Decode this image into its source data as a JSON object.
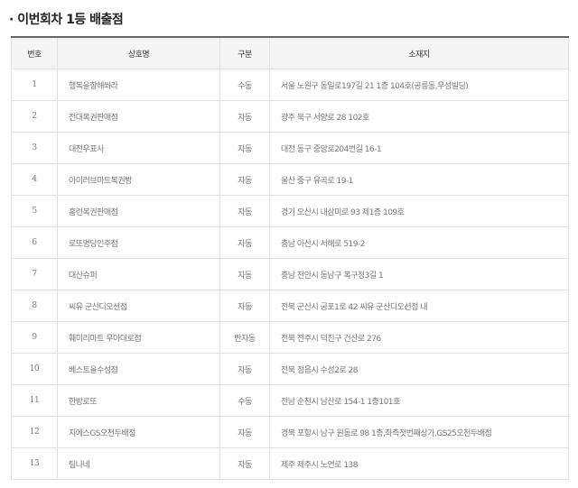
{
  "title": "· 이번회차 1등 배출점",
  "table": {
    "headers": [
      "번호",
      "상호명",
      "구분",
      "소재지"
    ],
    "rows": [
      {
        "no": "1",
        "name": "행복을향해쏴라",
        "type": "수동",
        "address": "서울 노원구 동일로197길 21 1층 104호(공릉동,우성빌딩)"
      },
      {
        "no": "2",
        "name": "전대복권판매점",
        "type": "자동",
        "address": "광주 북구 서양로 28 102호"
      },
      {
        "no": "3",
        "name": "대전우표사",
        "type": "자동",
        "address": "대전 동구 중앙로204번길 16-1"
      },
      {
        "no": "4",
        "name": "아이러브마트복권방",
        "type": "자동",
        "address": "울산 중구 유곡로 19-1"
      },
      {
        "no": "5",
        "name": "홈런복권판매점",
        "type": "자동",
        "address": "경기 오산시 내삼미로 93 제1층 109호"
      },
      {
        "no": "6",
        "name": "로또명당인주점",
        "type": "자동",
        "address": "충남 아산시 서해로 519-2"
      },
      {
        "no": "7",
        "name": "대산슈퍼",
        "type": "자동",
        "address": "충남 천안시 동남구 복구정3길 1"
      },
      {
        "no": "8",
        "name": "씨유 군산디오션점",
        "type": "자동",
        "address": "전북 군산시 궁포1로 42 씨유 군산디오션점 내"
      },
      {
        "no": "9",
        "name": "훼미리마트 우아대로점",
        "type": "반자동",
        "address": "전북 전주시 덕진구 건산로 276"
      },
      {
        "no": "10",
        "name": "베스트올수성점",
        "type": "자동",
        "address": "전북 정읍시 수성2로 28"
      },
      {
        "no": "11",
        "name": "한방로또",
        "type": "수동",
        "address": "전남 순천시 남산로 154-1 1층101호"
      },
      {
        "no": "12",
        "name": "지에스GS오천두배점",
        "type": "자동",
        "address": "경북 포항시 남구 원동로 98 1층,좌측첫번째상가,GS25오천두배점"
      },
      {
        "no": "13",
        "name": "팀나네",
        "type": "자동",
        "address": "제주 제주시 노연로 138"
      }
    ]
  }
}
